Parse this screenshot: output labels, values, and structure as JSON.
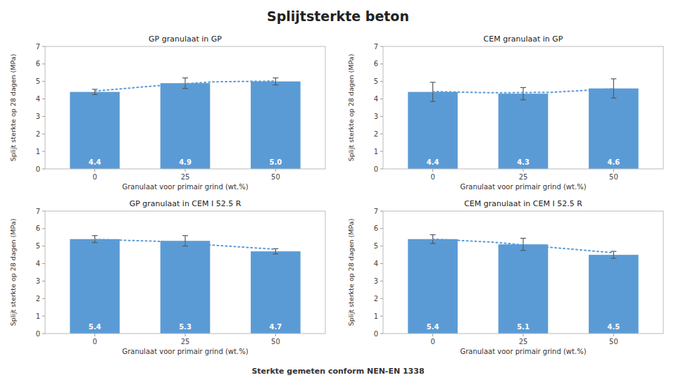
{
  "title": "Splijtsterkte beton",
  "subtitle": "Sterkte gemeten conform NEN-EN 1338",
  "chart_data": [
    {
      "type": "bar",
      "title": "GP granulaat in GP",
      "x_label": "Granulaat voor primair grind (wt.%)",
      "y_label": "Splijt sterkte op 28 dagen (MPa)",
      "x": [
        0,
        25,
        50
      ],
      "xlim": [
        -13.75,
        63.75
      ],
      "xticks": [
        0,
        25,
        50
      ],
      "ylim": [
        0,
        7
      ],
      "yticks": [
        0,
        1,
        2,
        3,
        4,
        5,
        6,
        7
      ],
      "grid": false,
      "data_labels": true,
      "series": [
        {
          "type": "bar",
          "color": "#5B9BD5",
          "values": [
            4.4,
            4.9,
            5.0
          ],
          "value_labels": [
            "4.4",
            "4.9",
            "5.0"
          ],
          "errors": [
            0.15,
            0.3,
            0.2
          ],
          "error_color": "#595959"
        },
        {
          "type": "line",
          "color": "#5B9BD5",
          "line_style": "dotted",
          "x": [
            0,
            17,
            33,
            50
          ],
          "values": [
            4.45,
            4.75,
            4.98,
            5.02
          ]
        }
      ]
    },
    {
      "type": "bar",
      "title": "CEM granulaat in GP",
      "x_label": "Granulaat voor primair grind (wt.%)",
      "y_label": "Splijt sterkte op 28 dagen (MPa)",
      "x": [
        0,
        25,
        50
      ],
      "xlim": [
        -13.75,
        63.75
      ],
      "xticks": [
        0,
        25,
        50
      ],
      "ylim": [
        0,
        7
      ],
      "yticks": [
        0,
        1,
        2,
        3,
        4,
        5,
        6,
        7
      ],
      "grid": false,
      "data_labels": true,
      "series": [
        {
          "type": "bar",
          "color": "#5B9BD5",
          "values": [
            4.4,
            4.3,
            4.6
          ],
          "value_labels": [
            "4.4",
            "4.3",
            "4.6"
          ],
          "errors": [
            0.55,
            0.35,
            0.55
          ],
          "error_color": "#595959"
        },
        {
          "type": "line",
          "color": "#5B9BD5",
          "line_style": "dotted",
          "x": [
            0,
            17,
            33,
            50
          ],
          "values": [
            4.42,
            4.35,
            4.38,
            4.58
          ]
        }
      ]
    },
    {
      "type": "bar",
      "title": "GP granulaat in CEM I  52.5 R",
      "x_label": "Granulaat voor primair grind (wt.%)",
      "y_label": "Splijt sterkte op 28 dagen (MPa)",
      "x": [
        0,
        25,
        50
      ],
      "xlim": [
        -13.75,
        63.75
      ],
      "xticks": [
        0,
        25,
        50
      ],
      "ylim": [
        0,
        7
      ],
      "yticks": [
        0,
        1,
        2,
        3,
        4,
        5,
        6,
        7
      ],
      "grid": false,
      "data_labels": true,
      "series": [
        {
          "type": "bar",
          "color": "#5B9BD5",
          "values": [
            5.4,
            5.3,
            4.7
          ],
          "value_labels": [
            "5.4",
            "5.3",
            "4.7"
          ],
          "errors": [
            0.2,
            0.3,
            0.15
          ],
          "error_color": "#595959"
        },
        {
          "type": "line",
          "color": "#5B9BD5",
          "line_style": "dotted",
          "x": [
            0,
            17,
            33,
            50
          ],
          "values": [
            5.38,
            5.28,
            5.05,
            4.82
          ]
        }
      ]
    },
    {
      "type": "bar",
      "title": "CEM granulaat in CEM I 52.5 R",
      "x_label": "Granulaat voor primair grind (wt.%)",
      "y_label": "Splijt sterkte op 28 dagen (MPa)",
      "x": [
        0,
        25,
        50
      ],
      "xlim": [
        -13.75,
        63.75
      ],
      "xticks": [
        0,
        25,
        50
      ],
      "ylim": [
        0,
        7
      ],
      "yticks": [
        0,
        1,
        2,
        3,
        4,
        5,
        6,
        7
      ],
      "grid": false,
      "data_labels": true,
      "series": [
        {
          "type": "bar",
          "color": "#5B9BD5",
          "values": [
            5.4,
            5.1,
            4.5
          ],
          "value_labels": [
            "5.4",
            "5.1",
            "4.5"
          ],
          "errors": [
            0.25,
            0.35,
            0.2
          ],
          "error_color": "#595959"
        },
        {
          "type": "line",
          "color": "#5B9BD5",
          "line_style": "dotted",
          "x": [
            0,
            17,
            33,
            50
          ],
          "values": [
            5.4,
            5.22,
            4.92,
            4.62
          ]
        }
      ]
    }
  ]
}
